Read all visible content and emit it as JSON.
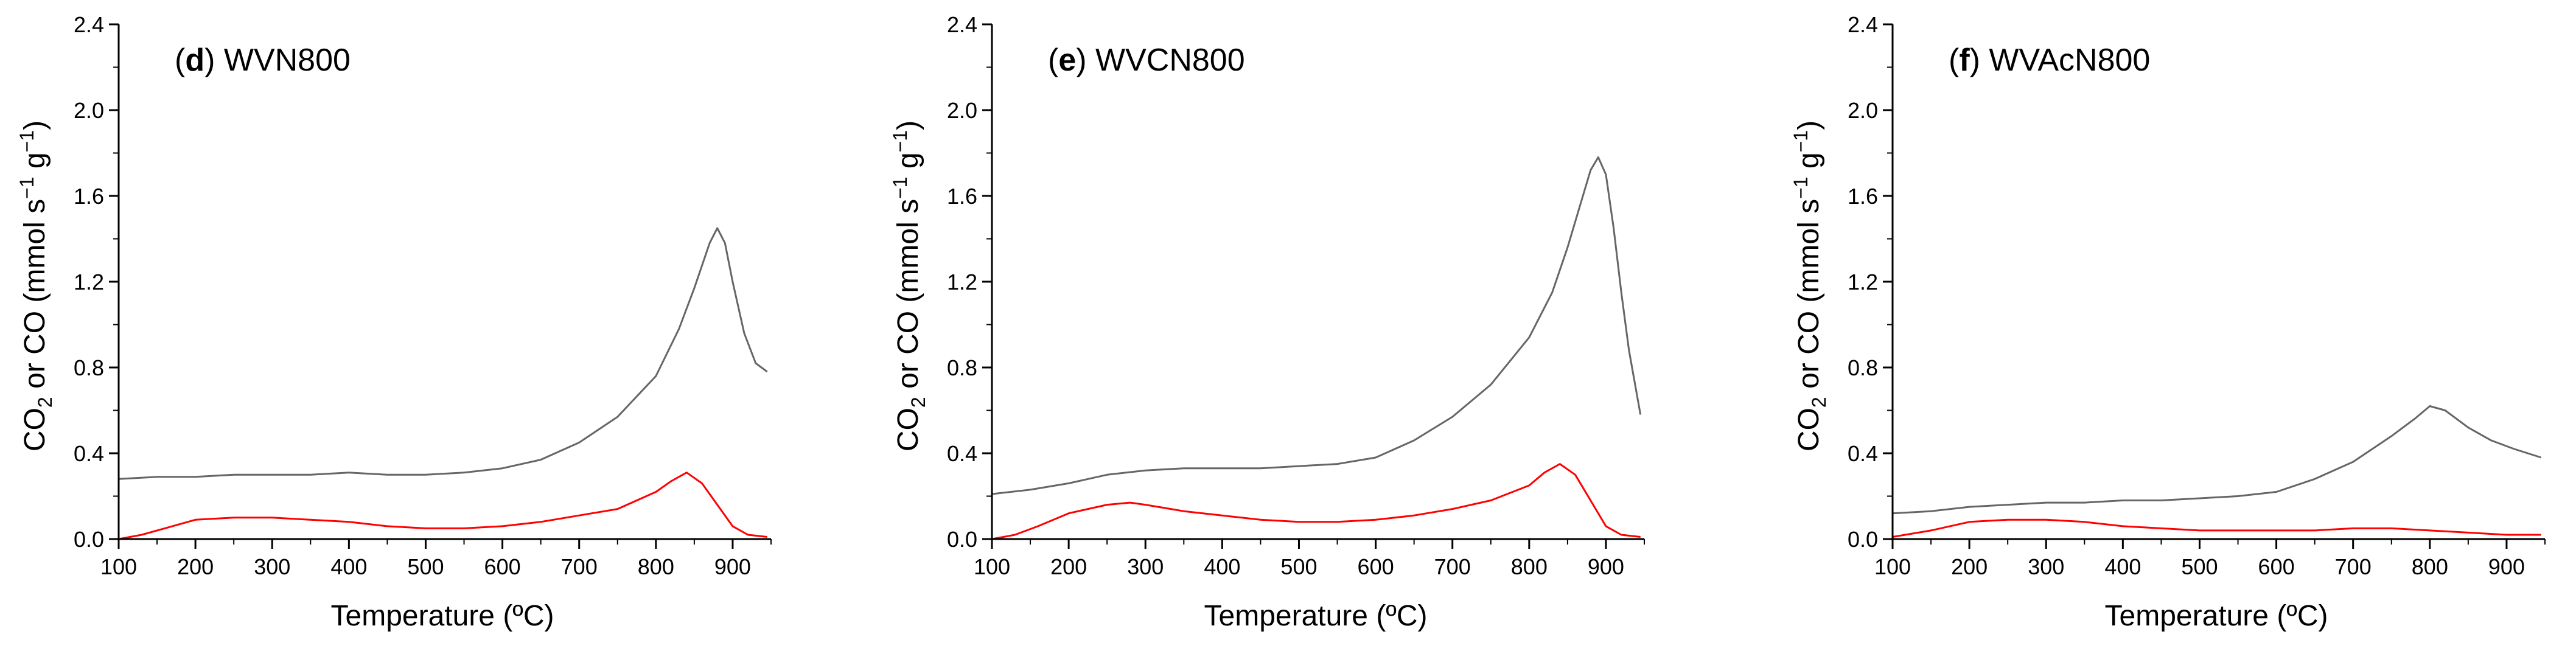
{
  "chart_data": [
    {
      "type": "line",
      "panel_letter": "d",
      "sample": "WVN800",
      "xlabel": "Temperature (ºC)",
      "ylabel_parts": [
        "CO",
        "2",
        " or CO (mmol s",
        "−1",
        " g",
        "−1",
        ")"
      ],
      "xlim": [
        100,
        950
      ],
      "ylim": [
        0,
        2.4
      ],
      "xticks": [
        100,
        200,
        300,
        400,
        500,
        600,
        700,
        800,
        900
      ],
      "yticks": [
        "0.0",
        "0.4",
        "0.8",
        "1.2",
        "1.6",
        "2.0",
        "2.4"
      ],
      "series": [
        {
          "name": "gray",
          "color": "#666666",
          "x": [
            100,
            150,
            200,
            250,
            300,
            350,
            400,
            450,
            500,
            550,
            600,
            650,
            700,
            750,
            800,
            830,
            850,
            870,
            880,
            890,
            900,
            915,
            930,
            945
          ],
          "y": [
            0.28,
            0.29,
            0.29,
            0.3,
            0.3,
            0.3,
            0.31,
            0.3,
            0.3,
            0.31,
            0.33,
            0.37,
            0.45,
            0.57,
            0.76,
            0.98,
            1.17,
            1.38,
            1.45,
            1.38,
            1.2,
            0.96,
            0.82,
            0.78
          ]
        },
        {
          "name": "red",
          "color": "#ff0000",
          "x": [
            100,
            130,
            160,
            200,
            250,
            300,
            350,
            400,
            450,
            500,
            550,
            600,
            650,
            700,
            750,
            800,
            820,
            840,
            860,
            880,
            900,
            920,
            945
          ],
          "y": [
            0.0,
            0.02,
            0.05,
            0.09,
            0.1,
            0.1,
            0.09,
            0.08,
            0.06,
            0.05,
            0.05,
            0.06,
            0.08,
            0.11,
            0.14,
            0.22,
            0.27,
            0.31,
            0.26,
            0.16,
            0.06,
            0.02,
            0.01
          ]
        }
      ]
    },
    {
      "type": "line",
      "panel_letter": "e",
      "sample": "WVCN800",
      "xlabel": "Temperature (ºC)",
      "ylabel_parts": [
        "CO",
        "2",
        " or CO (mmol s",
        "−1",
        " g",
        "−1",
        ")"
      ],
      "xlim": [
        100,
        950
      ],
      "ylim": [
        0,
        2.4
      ],
      "xticks": [
        100,
        200,
        300,
        400,
        500,
        600,
        700,
        800,
        900
      ],
      "yticks": [
        "0.0",
        "0.4",
        "0.8",
        "1.2",
        "1.6",
        "2.0",
        "2.4"
      ],
      "series": [
        {
          "name": "gray",
          "color": "#666666",
          "x": [
            100,
            150,
            200,
            250,
            300,
            350,
            400,
            450,
            500,
            550,
            600,
            650,
            700,
            750,
            800,
            830,
            850,
            870,
            880,
            890,
            900,
            910,
            920,
            930,
            945
          ],
          "y": [
            0.21,
            0.23,
            0.26,
            0.3,
            0.32,
            0.33,
            0.33,
            0.33,
            0.34,
            0.35,
            0.38,
            0.46,
            0.57,
            0.72,
            0.94,
            1.15,
            1.36,
            1.6,
            1.72,
            1.78,
            1.7,
            1.45,
            1.15,
            0.88,
            0.58
          ]
        },
        {
          "name": "red",
          "color": "#ff0000",
          "x": [
            100,
            130,
            160,
            200,
            250,
            280,
            300,
            350,
            400,
            450,
            500,
            550,
            600,
            650,
            700,
            750,
            800,
            820,
            840,
            860,
            880,
            900,
            920,
            945
          ],
          "y": [
            0.0,
            0.02,
            0.06,
            0.12,
            0.16,
            0.17,
            0.16,
            0.13,
            0.11,
            0.09,
            0.08,
            0.08,
            0.09,
            0.11,
            0.14,
            0.18,
            0.25,
            0.31,
            0.35,
            0.3,
            0.18,
            0.06,
            0.02,
            0.01
          ]
        }
      ]
    },
    {
      "type": "line",
      "panel_letter": "f",
      "sample": "WVAcN800",
      "xlabel": "Temperature (ºC)",
      "ylabel_parts": [
        "CO",
        "2",
        " or CO (mmol s",
        "−1",
        " g",
        "−1",
        ")"
      ],
      "xlim": [
        100,
        950
      ],
      "ylim": [
        0,
        2.4
      ],
      "xticks": [
        100,
        200,
        300,
        400,
        500,
        600,
        700,
        800,
        900
      ],
      "yticks": [
        "0.0",
        "0.4",
        "0.8",
        "1.2",
        "1.6",
        "2.0",
        "2.4"
      ],
      "series": [
        {
          "name": "gray",
          "color": "#666666",
          "x": [
            100,
            150,
            200,
            250,
            300,
            350,
            400,
            450,
            500,
            550,
            600,
            650,
            700,
            750,
            780,
            800,
            820,
            850,
            880,
            910,
            945
          ],
          "y": [
            0.12,
            0.13,
            0.15,
            0.16,
            0.17,
            0.17,
            0.18,
            0.18,
            0.19,
            0.2,
            0.22,
            0.28,
            0.36,
            0.48,
            0.56,
            0.62,
            0.6,
            0.52,
            0.46,
            0.42,
            0.38
          ]
        },
        {
          "name": "red",
          "color": "#ff0000",
          "x": [
            100,
            150,
            200,
            250,
            300,
            350,
            400,
            450,
            500,
            550,
            600,
            650,
            700,
            750,
            800,
            850,
            900,
            945
          ],
          "y": [
            0.01,
            0.04,
            0.08,
            0.09,
            0.09,
            0.08,
            0.06,
            0.05,
            0.04,
            0.04,
            0.04,
            0.04,
            0.05,
            0.05,
            0.04,
            0.03,
            0.02,
            0.02
          ]
        }
      ]
    }
  ]
}
